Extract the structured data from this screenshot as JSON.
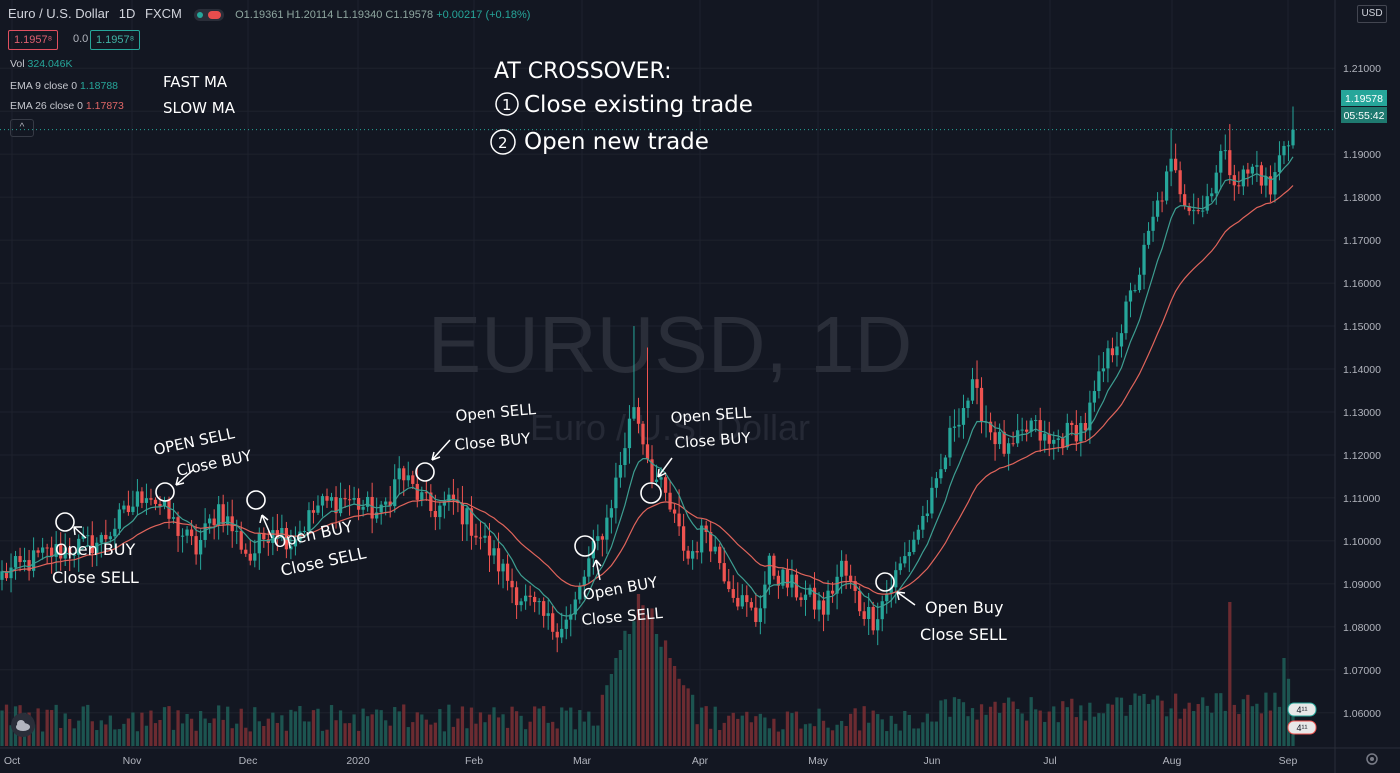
{
  "header": {
    "symbol": "Euro / U.S. Dollar",
    "interval": "1D",
    "exchange": "FXCM",
    "open": "O1.19361",
    "high": "H1.20114",
    "low": "L1.19340",
    "close": "C1.19578",
    "change": "+0.00217 (+0.18%)"
  },
  "trade_buttons": {
    "sell": "1.1957⁸",
    "spread": "0.0",
    "buy": "1.1957⁸"
  },
  "indicators": {
    "volume_label": "Vol",
    "volume_value": "324.046K",
    "ema_fast_label": "EMA 9 close 0",
    "ema_fast_value": "1.18788",
    "ema_slow_label": "EMA 26 close 0",
    "ema_slow_value": "1.17873",
    "collapse_glyph": "^"
  },
  "currency_button": "USD",
  "watermark": {
    "line1": "EURUSD, 1D",
    "line2": "Euro / U.S. Dollar"
  },
  "colors": {
    "up": "#26a69a",
    "down": "#ef5350",
    "ema_fast": "#3d9e91",
    "ema_slow": "#e0645b",
    "background": "#131722"
  },
  "handwritten": {
    "fast_ma": "FAST MA",
    "slow_ma": "SLOW MA",
    "title": "AT CROSSOVER:",
    "step1_num": "1",
    "step1": "Close existing trade",
    "step2_num": "2",
    "step2": "Open new trade",
    "notes": [
      {
        "l1": "Open BUY",
        "l2": "Close SELL"
      },
      {
        "l1": "OPEN SELL",
        "l2": "Close BUY"
      },
      {
        "l1": "Open BUY",
        "l2": "Close SELL"
      },
      {
        "l1": "Open SELL",
        "l2": "Close BUY"
      },
      {
        "l1": "Open BUY",
        "l2": "Close SELL"
      },
      {
        "l1": "Open SELL",
        "l2": "Close BUY"
      },
      {
        "l1": "Open Buy",
        "l2": "Close SELL"
      }
    ]
  },
  "chart_data": {
    "type": "candlestick",
    "title": "",
    "ylim": [
      1.0525,
      1.2175
    ],
    "y_ticks": [
      "1.21000",
      "1.20000",
      "1.19000",
      "1.18000",
      "1.17000",
      "1.16000",
      "1.15000",
      "1.14000",
      "1.13000",
      "1.12000",
      "1.11000",
      "1.10000",
      "1.09000",
      "1.08000",
      "1.07000",
      "1.06000"
    ],
    "x_ticks": [
      "Oct",
      "Nov",
      "Dec",
      "2020",
      "Feb",
      "Mar",
      "Apr",
      "May",
      "Jun",
      "Jul",
      "Aug",
      "Sep"
    ],
    "last_price": "1.19578",
    "countdown": "05:55:42",
    "volume_tags": [
      "4¹¹",
      "4¹¹"
    ],
    "close_path": [
      [
        0,
        1.092
      ],
      [
        10,
        1.097
      ],
      [
        22,
        1.1
      ],
      [
        32,
        1.112
      ],
      [
        38,
        1.104
      ],
      [
        43,
        1.098
      ],
      [
        48,
        1.108
      ],
      [
        55,
        1.096
      ],
      [
        60,
        1.104
      ],
      [
        64,
        1.1
      ],
      [
        70,
        1.108
      ],
      [
        76,
        1.11
      ],
      [
        84,
        1.106
      ],
      [
        88,
        1.116
      ],
      [
        95,
        1.107
      ],
      [
        100,
        1.109
      ],
      [
        106,
        1.101
      ],
      [
        114,
        1.088
      ],
      [
        122,
        1.08
      ],
      [
        126,
        1.082
      ],
      [
        130,
        1.095
      ],
      [
        134,
        1.105
      ],
      [
        137,
        1.118
      ],
      [
        140,
        1.132
      ],
      [
        144,
        1.116
      ],
      [
        147,
        1.11
      ],
      [
        152,
        1.096
      ],
      [
        156,
        1.103
      ],
      [
        160,
        1.093
      ],
      [
        163,
        1.087
      ],
      [
        167,
        1.082
      ],
      [
        170,
        1.094
      ],
      [
        174,
        1.09
      ],
      [
        178,
        1.087
      ],
      [
        182,
        1.084
      ],
      [
        186,
        1.094
      ],
      [
        190,
        1.085
      ],
      [
        193,
        1.082
      ],
      [
        197,
        1.09
      ],
      [
        200,
        1.096
      ],
      [
        203,
        1.103
      ],
      [
        207,
        1.112
      ],
      [
        211,
        1.128
      ],
      [
        215,
        1.135
      ],
      [
        219,
        1.126
      ],
      [
        223,
        1.12
      ],
      [
        228,
        1.127
      ],
      [
        232,
        1.122
      ],
      [
        236,
        1.125
      ],
      [
        240,
        1.127
      ],
      [
        244,
        1.14
      ],
      [
        248,
        1.15
      ],
      [
        252,
        1.163
      ],
      [
        256,
        1.178
      ],
      [
        259,
        1.187
      ],
      [
        262,
        1.18
      ],
      [
        266,
        1.177
      ],
      [
        270,
        1.19
      ],
      [
        274,
        1.184
      ],
      [
        278,
        1.187
      ],
      [
        281,
        1.181
      ],
      [
        284,
        1.193
      ],
      [
        286,
        1.1957
      ]
    ],
    "spike_days": {
      "140": 1.15,
      "143": 1.145,
      "150": 1.112,
      "216": 1.142,
      "259": 1.196,
      "272": 1.197,
      "286": 1.2011
    },
    "volume_range": [
      0.09,
      0.26
    ],
    "volume_spikes": {
      "136": 0.55,
      "138": 0.72,
      "140": 0.78,
      "141": 0.95,
      "142": 0.88,
      "143": 0.82,
      "144": 0.86,
      "145": 0.7,
      "146": 0.62,
      "147": 0.66,
      "148": 0.55,
      "149": 0.5,
      "150": 0.42,
      "151": 0.38,
      "133": 0.32,
      "134": 0.38,
      "135": 0.45,
      "137": 0.6,
      "139": 0.7,
      "152": 0.36,
      "153": 0.32,
      "272": 0.9,
      "284": 0.55,
      "285": 0.42
    }
  }
}
